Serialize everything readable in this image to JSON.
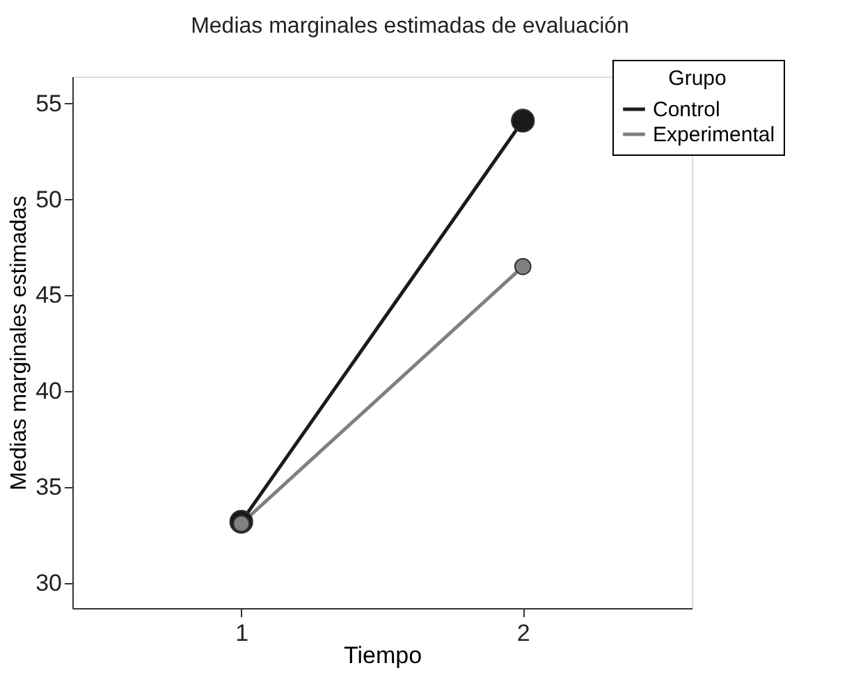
{
  "chart_data": {
    "type": "line",
    "title": "Medias marginales estimadas de evaluación",
    "xlabel": "Tiempo",
    "ylabel": "Medias marginales estimadas",
    "legend_title": "Grupo",
    "x": [
      1,
      2
    ],
    "series": [
      {
        "name": "Control",
        "color": "#1a1a1a",
        "values": [
          33.2,
          54.1
        ]
      },
      {
        "name": "Experimental",
        "color": "#808080",
        "values": [
          33.1,
          46.5
        ]
      }
    ],
    "xlim": [
      0.4,
      2.6
    ],
    "xticks": [
      1,
      2
    ],
    "ylim": [
      28.7,
      56.4
    ],
    "yticks": [
      30,
      35,
      40,
      45,
      50,
      55
    ],
    "marker": "circle",
    "line_style": "solid",
    "grid": false,
    "legend": "top right"
  }
}
